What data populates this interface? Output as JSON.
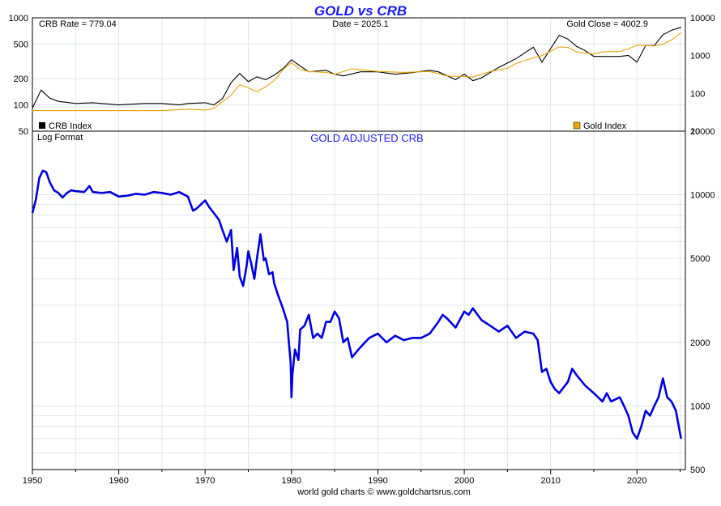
{
  "chart_data": [
    {
      "type": "line",
      "title": "GOLD vs CRB",
      "info": {
        "crb_rate": "CRB Rate = 779.04",
        "date": "Date = 2025.1",
        "gold_close": "Gold Close = 4002.9"
      },
      "left_scale": "log",
      "left_ticks": [
        {
          "v": 50,
          "label": "50"
        },
        {
          "v": 100,
          "label": "100"
        },
        {
          "v": 200,
          "label": "200"
        },
        {
          "v": 500,
          "label": "500"
        },
        {
          "v": 1000,
          "label": "1000"
        }
      ],
      "right_scale": "log",
      "right_ticks": [
        {
          "v": 10,
          "label": "10"
        },
        {
          "v": 100,
          "label": "100"
        },
        {
          "v": 1000,
          "label": "1000"
        },
        {
          "v": 10000,
          "label": "10000"
        }
      ],
      "xlim": [
        1950,
        2025.6
      ],
      "ylim_left": [
        50,
        1000
      ],
      "ylim_right": [
        10,
        10000
      ],
      "series": [
        {
          "name": "CRB Index",
          "color": "#000000",
          "axis": "left",
          "points": [
            [
              1950,
              92
            ],
            [
              1951,
              148
            ],
            [
              1952,
              120
            ],
            [
              1953,
              110
            ],
            [
              1955,
              104
            ],
            [
              1957,
              106
            ],
            [
              1960,
              100
            ],
            [
              1963,
              104
            ],
            [
              1965,
              104
            ],
            [
              1967,
              100
            ],
            [
              1968,
              104
            ],
            [
              1970,
              106
            ],
            [
              1971,
              100
            ],
            [
              1972,
              118
            ],
            [
              1973,
              180
            ],
            [
              1974,
              230
            ],
            [
              1975,
              185
            ],
            [
              1976,
              210
            ],
            [
              1977,
              195
            ],
            [
              1978,
              220
            ],
            [
              1979,
              260
            ],
            [
              1980,
              330
            ],
            [
              1981,
              280
            ],
            [
              1982,
              240
            ],
            [
              1984,
              250
            ],
            [
              1985,
              225
            ],
            [
              1986,
              215
            ],
            [
              1988,
              240
            ],
            [
              1990,
              240
            ],
            [
              1992,
              225
            ],
            [
              1994,
              235
            ],
            [
              1996,
              250
            ],
            [
              1997,
              240
            ],
            [
              1999,
              195
            ],
            [
              2000,
              225
            ],
            [
              2001,
              190
            ],
            [
              2002,
              205
            ],
            [
              2004,
              270
            ],
            [
              2006,
              340
            ],
            [
              2008,
              460
            ],
            [
              2009,
              310
            ],
            [
              2011,
              630
            ],
            [
              2012,
              570
            ],
            [
              2013,
              470
            ],
            [
              2014,
              420
            ],
            [
              2015,
              360
            ],
            [
              2016,
              360
            ],
            [
              2018,
              360
            ],
            [
              2019,
              370
            ],
            [
              2020,
              310
            ],
            [
              2021,
              480
            ],
            [
              2022,
              480
            ],
            [
              2023,
              640
            ],
            [
              2024,
              720
            ],
            [
              2025.1,
              779
            ]
          ]
        },
        {
          "name": "Gold Index",
          "color": "#e8a300",
          "axis": "right",
          "points": [
            [
              1950,
              35
            ],
            [
              1955,
              35
            ],
            [
              1960,
              35
            ],
            [
              1965,
              35
            ],
            [
              1968,
              38
            ],
            [
              1970,
              36
            ],
            [
              1971,
              40
            ],
            [
              1973,
              90
            ],
            [
              1974,
              170
            ],
            [
              1975,
              140
            ],
            [
              1976,
              110
            ],
            [
              1977,
              150
            ],
            [
              1978,
              220
            ],
            [
              1979,
              420
            ],
            [
              1980,
              650
            ],
            [
              1981,
              430
            ],
            [
              1982,
              380
            ],
            [
              1984,
              360
            ],
            [
              1985,
              320
            ],
            [
              1987,
              450
            ],
            [
              1990,
              380
            ],
            [
              1993,
              360
            ],
            [
              1996,
              380
            ],
            [
              1998,
              290
            ],
            [
              2000,
              280
            ],
            [
              2001,
              270
            ],
            [
              2003,
              380
            ],
            [
              2005,
              460
            ],
            [
              2006,
              620
            ],
            [
              2008,
              870
            ],
            [
              2009,
              1000
            ],
            [
              2011,
              1700
            ],
            [
              2012,
              1650
            ],
            [
              2013,
              1250
            ],
            [
              2015,
              1100
            ],
            [
              2016,
              1250
            ],
            [
              2018,
              1280
            ],
            [
              2019,
              1500
            ],
            [
              2020,
              1900
            ],
            [
              2022,
              1800
            ],
            [
              2023,
              2000
            ],
            [
              2024,
              2600
            ],
            [
              2025.1,
              4003
            ]
          ]
        }
      ],
      "legend": [
        {
          "label": "CRB Index",
          "color": "#000000",
          "position": "bottom-left"
        },
        {
          "label": "Gold Index",
          "color": "#e8a300",
          "position": "bottom-right"
        }
      ]
    },
    {
      "type": "line",
      "title": "GOLD ADJUSTED CRB",
      "note": "Log Format",
      "scale": "log",
      "xlim": [
        1950,
        2025.6
      ],
      "ylim": [
        500,
        20000
      ],
      "y_ticks": [
        {
          "v": 500,
          "label": "500"
        },
        {
          "v": 1000,
          "label": "1000"
        },
        {
          "v": 2000,
          "label": "2000"
        },
        {
          "v": 5000,
          "label": "5000"
        },
        {
          "v": 10000,
          "label": "10000"
        },
        {
          "v": 20000,
          "label": "20000"
        }
      ],
      "x_ticks": [
        1950,
        1960,
        1970,
        1980,
        1990,
        2000,
        2010,
        2020
      ],
      "series": [
        {
          "name": "Gold Adjusted CRB",
          "color": "#0000e0",
          "points": [
            [
              1950,
              8200
            ],
            [
              1950.4,
              9500
            ],
            [
              1950.8,
              12000
            ],
            [
              1951.2,
              13000
            ],
            [
              1951.6,
              12800
            ],
            [
              1952,
              11500
            ],
            [
              1952.5,
              10500
            ],
            [
              1953,
              10200
            ],
            [
              1953.5,
              9700
            ],
            [
              1954,
              10200
            ],
            [
              1954.5,
              10500
            ],
            [
              1955,
              10400
            ],
            [
              1956,
              10300
            ],
            [
              1956.6,
              11000
            ],
            [
              1957,
              10300
            ],
            [
              1958,
              10200
            ],
            [
              1959,
              10300
            ],
            [
              1960,
              9800
            ],
            [
              1961,
              9900
            ],
            [
              1962,
              10100
            ],
            [
              1963,
              10000
            ],
            [
              1964,
              10300
            ],
            [
              1965,
              10200
            ],
            [
              1966,
              10000
            ],
            [
              1967,
              10300
            ],
            [
              1968,
              9800
            ],
            [
              1968.6,
              8400
            ],
            [
              1969,
              8600
            ],
            [
              1970,
              9400
            ],
            [
              1970.5,
              8700
            ],
            [
              1971,
              8200
            ],
            [
              1971.6,
              7600
            ],
            [
              1972,
              6800
            ],
            [
              1972.5,
              6000
            ],
            [
              1973,
              6800
            ],
            [
              1973.3,
              4400
            ],
            [
              1973.7,
              5600
            ],
            [
              1974,
              4100
            ],
            [
              1974.4,
              3700
            ],
            [
              1974.8,
              4600
            ],
            [
              1975,
              5400
            ],
            [
              1975.3,
              4800
            ],
            [
              1975.7,
              4000
            ],
            [
              1976,
              5000
            ],
            [
              1976.4,
              6500
            ],
            [
              1976.8,
              4900
            ],
            [
              1977,
              5000
            ],
            [
              1977.4,
              4200
            ],
            [
              1977.8,
              4300
            ],
            [
              1978,
              3800
            ],
            [
              1978.5,
              3300
            ],
            [
              1979,
              2900
            ],
            [
              1979.5,
              2500
            ],
            [
              1979.7,
              2000
            ],
            [
              1979.9,
              1600
            ],
            [
              1980,
              1100
            ],
            [
              1980.1,
              1400
            ],
            [
              1980.4,
              1850
            ],
            [
              1980.8,
              1650
            ],
            [
              1981,
              2300
            ],
            [
              1981.5,
              2400
            ],
            [
              1982,
              2700
            ],
            [
              1982.5,
              2100
            ],
            [
              1983,
              2200
            ],
            [
              1983.5,
              2100
            ],
            [
              1984,
              2500
            ],
            [
              1984.5,
              2500
            ],
            [
              1985,
              2800
            ],
            [
              1985.5,
              2600
            ],
            [
              1986,
              2000
            ],
            [
              1986.5,
              2100
            ],
            [
              1987,
              1700
            ],
            [
              1987.5,
              1800
            ],
            [
              1988,
              1900
            ],
            [
              1989,
              2100
            ],
            [
              1990,
              2200
            ],
            [
              1991,
              2000
            ],
            [
              1992,
              2150
            ],
            [
              1993,
              2050
            ],
            [
              1994,
              2100
            ],
            [
              1995,
              2100
            ],
            [
              1996,
              2200
            ],
            [
              1997,
              2500
            ],
            [
              1997.5,
              2700
            ],
            [
              1998,
              2600
            ],
            [
              1999,
              2350
            ],
            [
              2000,
              2800
            ],
            [
              2000.5,
              2700
            ],
            [
              2001,
              2900
            ],
            [
              2002,
              2550
            ],
            [
              2003,
              2400
            ],
            [
              2004,
              2250
            ],
            [
              2005,
              2400
            ],
            [
              2006,
              2100
            ],
            [
              2007,
              2250
            ],
            [
              2008,
              2200
            ],
            [
              2008.5,
              2050
            ],
            [
              2009,
              1450
            ],
            [
              2009.5,
              1500
            ],
            [
              2010,
              1300
            ],
            [
              2010.5,
              1200
            ],
            [
              2011,
              1150
            ],
            [
              2012,
              1300
            ],
            [
              2012.5,
              1500
            ],
            [
              2013,
              1400
            ],
            [
              2014,
              1250
            ],
            [
              2015,
              1150
            ],
            [
              2016,
              1050
            ],
            [
              2016.5,
              1150
            ],
            [
              2017,
              1050
            ],
            [
              2018,
              1100
            ],
            [
              2018.5,
              1000
            ],
            [
              2019,
              900
            ],
            [
              2019.5,
              750
            ],
            [
              2020,
              700
            ],
            [
              2020.5,
              800
            ],
            [
              2021,
              950
            ],
            [
              2021.5,
              900
            ],
            [
              2022,
              1000
            ],
            [
              2022.5,
              1100
            ],
            [
              2023,
              1350
            ],
            [
              2023.5,
              1100
            ],
            [
              2024,
              1050
            ],
            [
              2024.5,
              950
            ],
            [
              2025.1,
              700
            ]
          ]
        }
      ]
    }
  ],
  "footer": "world gold charts © www.goldchartsrus.com"
}
